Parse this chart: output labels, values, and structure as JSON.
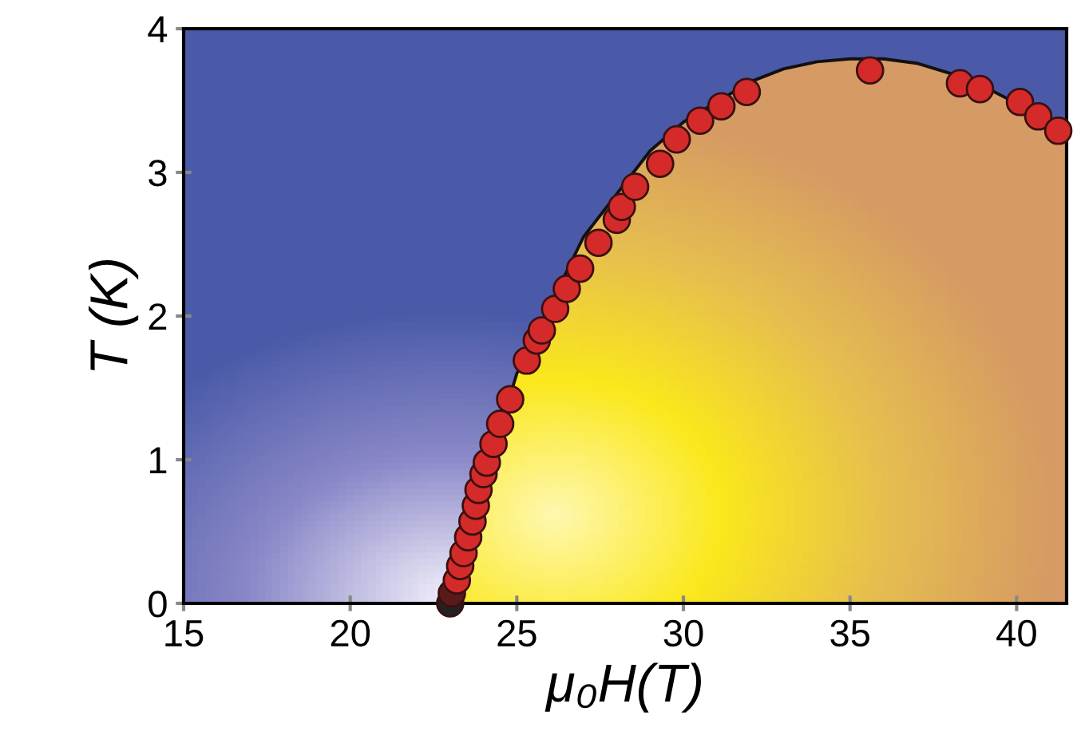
{
  "chart_data": {
    "type": "scatter",
    "xlabel": "μ₀H(T)",
    "ylabel": "T (K)",
    "xlim": [
      15,
      41.5
    ],
    "ylim": [
      0,
      4
    ],
    "xticks": [
      15,
      20,
      25,
      30,
      35,
      40
    ],
    "yticks": [
      0,
      1,
      2,
      3,
      4
    ],
    "grid": false,
    "legend": false,
    "marker": "circle",
    "series": [
      {
        "type": "line",
        "color": "#111111",
        "marker": "none",
        "line_style": "solid",
        "x": [
          23.0,
          23.5,
          25.0,
          27.0,
          28.0,
          29.0,
          30.0,
          32.0,
          33.0,
          34.0,
          35.0,
          36.0,
          37.0,
          38.0,
          39.0,
          40.0,
          41.0
        ],
        "values": [
          0.0,
          0.45,
          1.6,
          2.55,
          2.85,
          3.15,
          3.35,
          3.63,
          3.72,
          3.77,
          3.79,
          3.79,
          3.76,
          3.69,
          3.6,
          3.48,
          3.35
        ]
      },
      {
        "color": "#d42a2a",
        "x": [
          23.0,
          23.05,
          23.2,
          23.3,
          23.4,
          23.54,
          23.67,
          23.77,
          23.85,
          24.0,
          24.1,
          24.3,
          24.5,
          24.8,
          25.3,
          25.6,
          25.75,
          26.15,
          26.5,
          26.9,
          27.45,
          28.0,
          28.15,
          28.55,
          29.3,
          29.8,
          30.5,
          31.14,
          31.9,
          35.6,
          38.3,
          38.9,
          40.1,
          40.65,
          41.25
        ],
        "values": [
          0.0,
          0.07,
          0.16,
          0.26,
          0.35,
          0.46,
          0.57,
          0.68,
          0.79,
          0.9,
          0.98,
          1.11,
          1.25,
          1.42,
          1.69,
          1.83,
          1.9,
          2.05,
          2.19,
          2.33,
          2.51,
          2.67,
          2.76,
          2.9,
          3.06,
          3.23,
          3.36,
          3.46,
          3.56,
          3.71,
          3.62,
          3.58,
          3.49,
          3.39,
          3.29
        ],
        "colors": [
          "#222222",
          "#5a1a1a",
          "#d42a2a",
          "#d42a2a",
          "#d42a2a",
          "#d42a2a",
          "#d42a2a",
          "#d42a2a",
          "#d42a2a",
          "#d42a2a",
          "#d42a2a",
          "#d42a2a",
          "#d42a2a",
          "#d42a2a",
          "#d42a2a",
          "#d42a2a",
          "#d42a2a",
          "#d42a2a",
          "#d42a2a",
          "#d42a2a",
          "#d42a2a",
          "#d42a2a",
          "#d42a2a",
          "#d42a2a",
          "#d42a2a",
          "#d42a2a",
          "#d42a2a",
          "#d42a2a",
          "#d42a2a",
          "#d42a2a",
          "#d42a2a",
          "#d42a2a",
          "#d42a2a",
          "#d42a2a",
          "#d42a2a"
        ]
      }
    ]
  }
}
